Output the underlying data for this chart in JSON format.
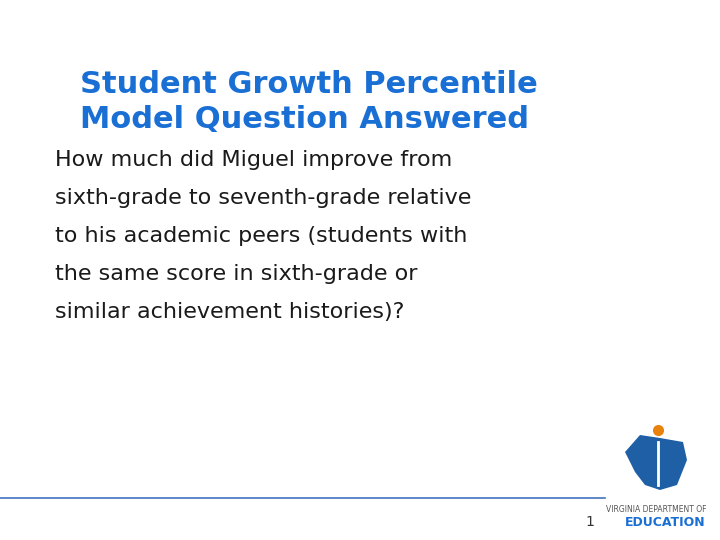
{
  "title_line1": "Student Growth Percentile",
  "title_line2": "Model Question Answered",
  "title_color": "#1A6FD4",
  "body_text": "How much did Miguel improve from\nsixth-grade to seventh-grade relative\nto his academic peers (students with\nthe same score in sixth-grade or\nsimilar achievement histories)?",
  "body_color": "#1A1A1A",
  "background_color": "#FFFFFF",
  "title_fontsize": 22,
  "body_fontsize": 16,
  "page_number": "1",
  "line_color": "#4472C4",
  "footer_text_line1": "VIRGINIA DEPARTMENT OF",
  "footer_text_line2": "EDUCATION",
  "footer_color": "#1A6FD4",
  "logo_blue": "#1F5FA6",
  "logo_orange": "#E8820A"
}
